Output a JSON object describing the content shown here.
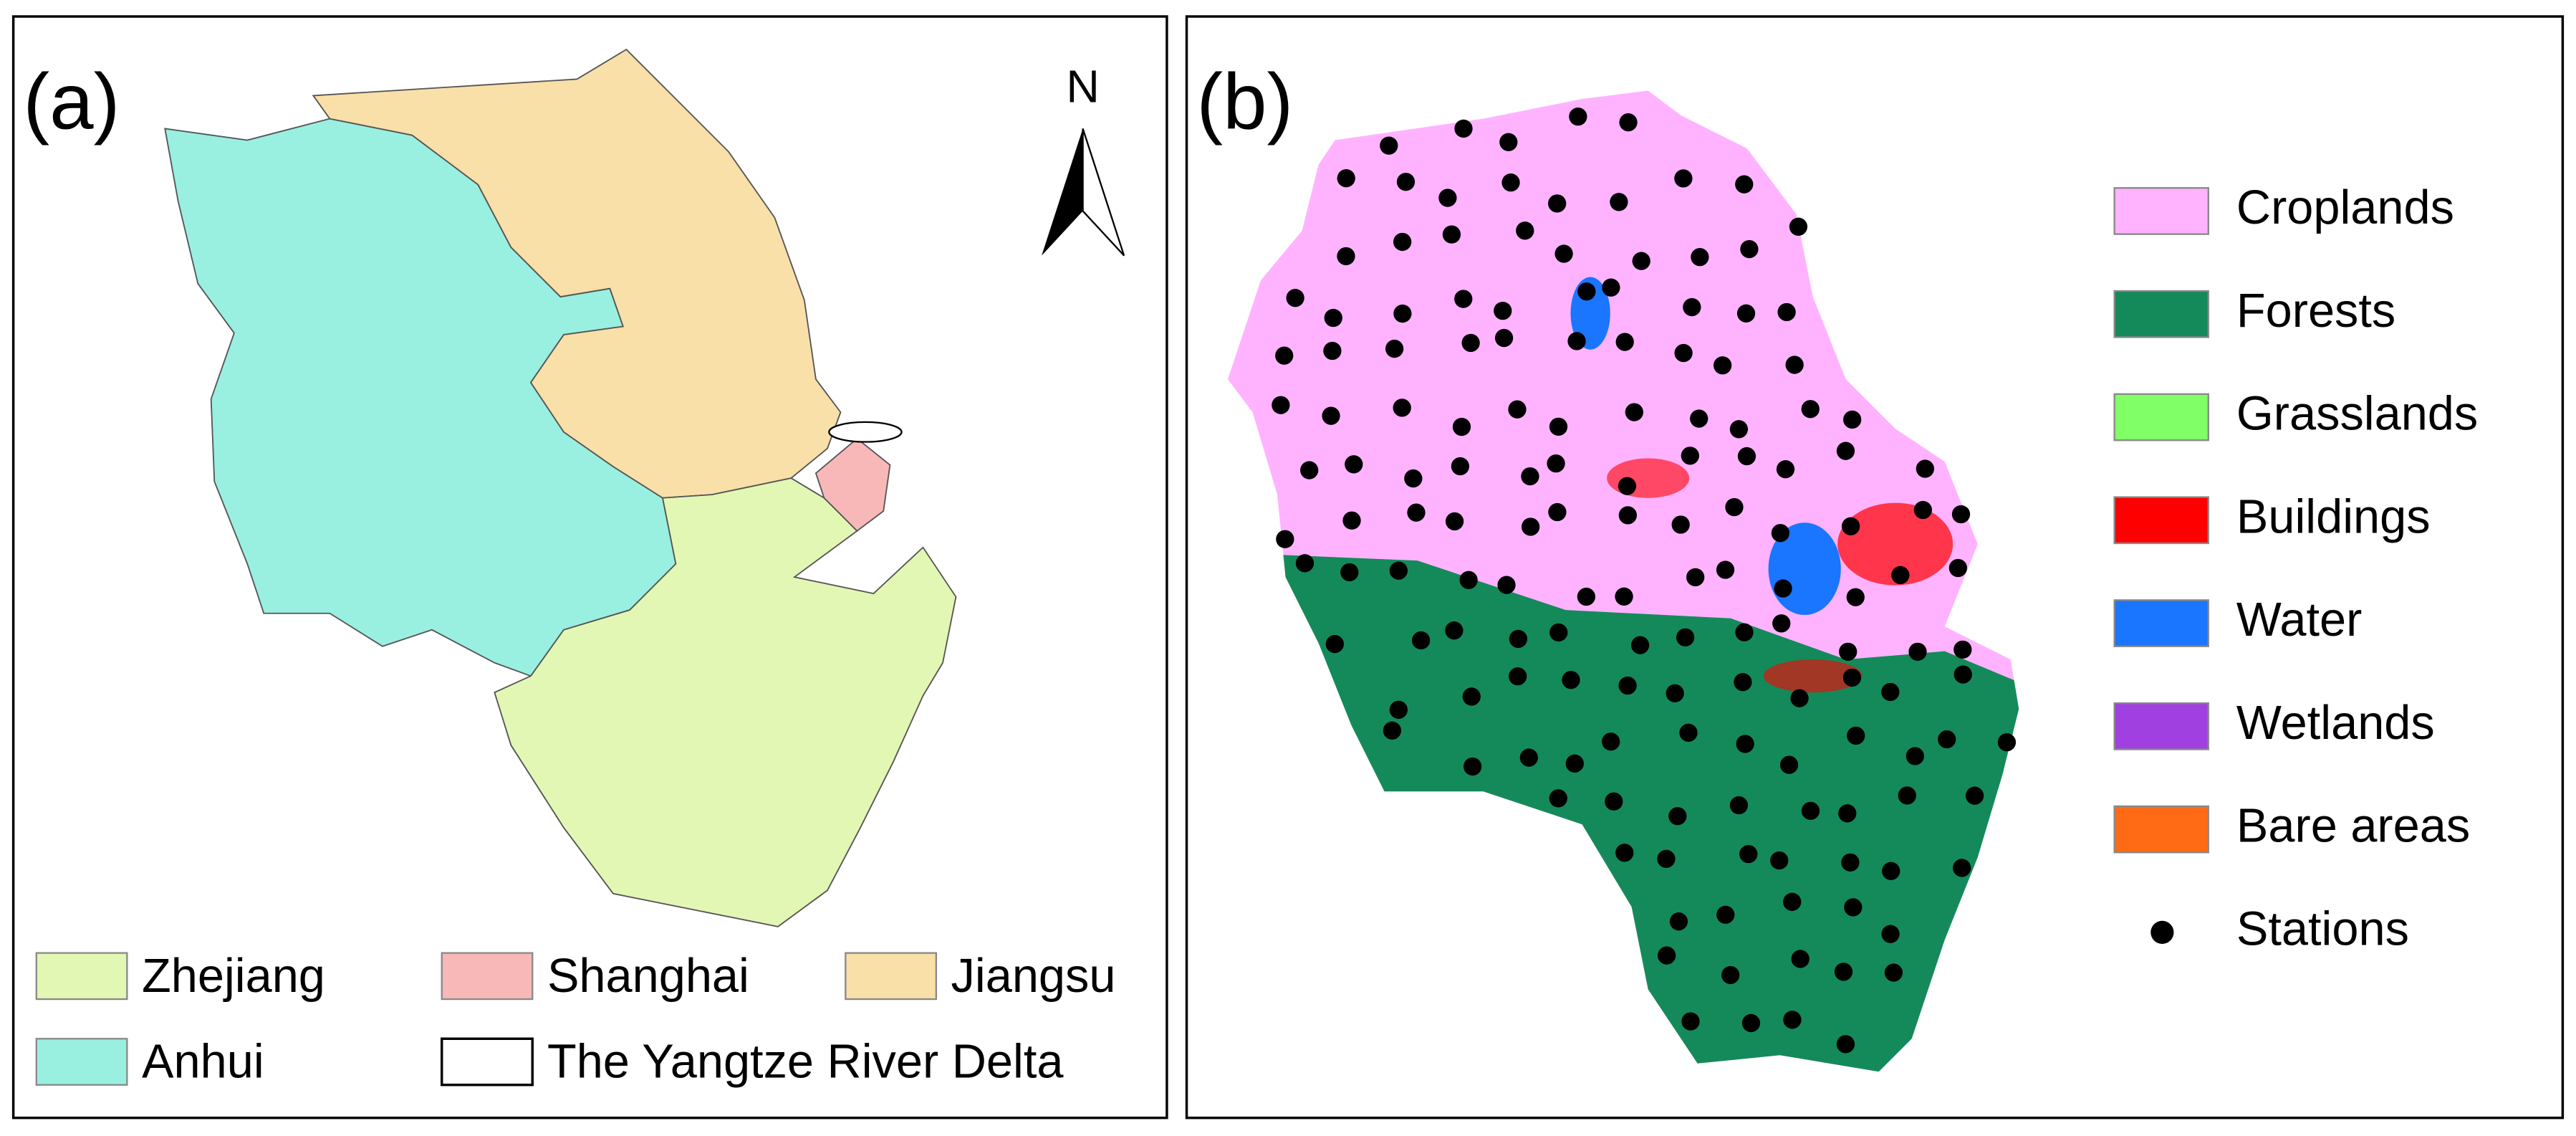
{
  "panel_a": {
    "label": "(a)",
    "north": "N",
    "legend": [
      "Zhejiang",
      "Shanghai",
      "Jiangsu",
      "Anhui",
      "The Yangtze River Delta"
    ]
  },
  "panel_b": {
    "label": "(b)",
    "legend": [
      "Croplands",
      "Forests",
      "Grasslands",
      "Buildings",
      "Water",
      "Wetlands",
      "Bare areas",
      "Stations"
    ]
  }
}
